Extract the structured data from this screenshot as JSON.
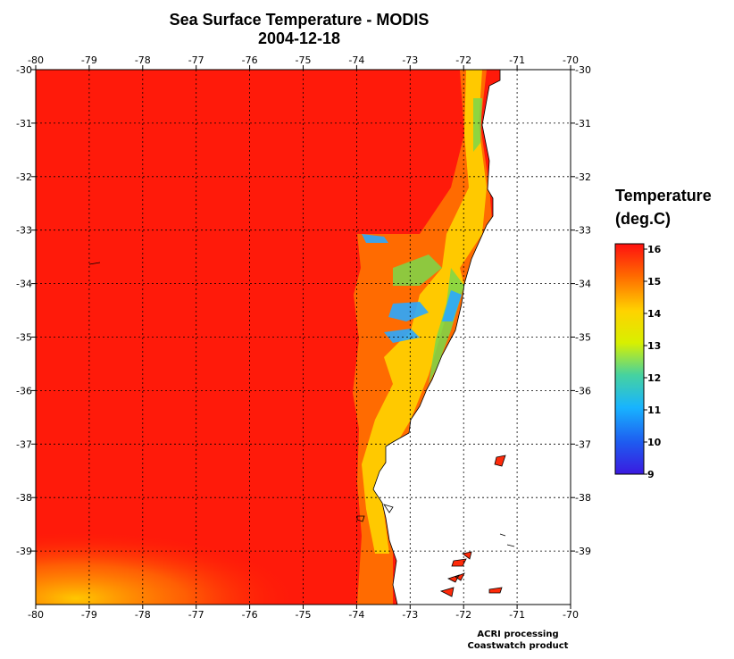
{
  "title": "Sea Surface Temperature - MODIS",
  "date": "2004-12-18",
  "legend": {
    "title_line1": "Temperature",
    "title_line2": "(deg.C)",
    "ticks": [
      "16",
      "15",
      "14",
      "13",
      "12",
      "11",
      "10",
      "9"
    ],
    "colors": [
      "#ff1010",
      "#ff6a00",
      "#ffd200",
      "#d8f000",
      "#46d2a0",
      "#18b4ff",
      "#1e5cf0",
      "#3a1ae0"
    ]
  },
  "credits": {
    "line1": "ACRI processing",
    "line2": "Coastwatch product"
  },
  "chart_data": {
    "type": "heatmap",
    "variable": "Sea Surface Temperature",
    "units": "deg.C",
    "x_ticks": [
      "-80",
      "-79",
      "-78",
      "-77",
      "-76",
      "-75",
      "-74",
      "-73",
      "-72",
      "-71",
      "-70"
    ],
    "y_ticks": [
      "-30",
      "-31",
      "-32",
      "-33",
      "-34",
      "-35",
      "-36",
      "-37",
      "-38",
      "-39"
    ],
    "xlim": [
      -80,
      -70
    ],
    "ylim": [
      -40,
      -30
    ],
    "color_range": [
      9,
      16
    ],
    "grid": true
  }
}
